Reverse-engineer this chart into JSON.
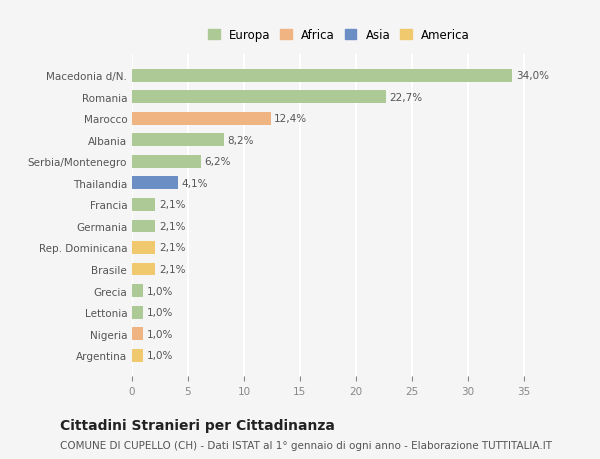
{
  "categories": [
    "Macedonia d/N.",
    "Romania",
    "Marocco",
    "Albania",
    "Serbia/Montenegro",
    "Thailandia",
    "Francia",
    "Germania",
    "Rep. Dominicana",
    "Brasile",
    "Grecia",
    "Lettonia",
    "Nigeria",
    "Argentina"
  ],
  "values": [
    34.0,
    22.7,
    12.4,
    8.2,
    6.2,
    4.1,
    2.1,
    2.1,
    2.1,
    2.1,
    1.0,
    1.0,
    1.0,
    1.0
  ],
  "labels": [
    "34,0%",
    "22,7%",
    "12,4%",
    "8,2%",
    "6,2%",
    "4,1%",
    "2,1%",
    "2,1%",
    "2,1%",
    "2,1%",
    "1,0%",
    "1,0%",
    "1,0%",
    "1,0%"
  ],
  "colors": [
    "#adc996",
    "#adc996",
    "#f0b482",
    "#adc996",
    "#adc996",
    "#6b8ec4",
    "#adc996",
    "#adc996",
    "#f0c96e",
    "#f0c96e",
    "#adc996",
    "#adc996",
    "#f0b482",
    "#f0c96e"
  ],
  "legend_labels": [
    "Europa",
    "Africa",
    "Asia",
    "America"
  ],
  "legend_colors": [
    "#adc996",
    "#f0b482",
    "#6b8ec4",
    "#f0c96e"
  ],
  "title": "Cittadini Stranieri per Cittadinanza",
  "subtitle": "COMUNE DI CUPELLO (CH) - Dati ISTAT al 1° gennaio di ogni anno - Elaborazione TUTTITALIA.IT",
  "xlim": [
    0,
    37
  ],
  "xticks": [
    0,
    5,
    10,
    15,
    20,
    25,
    30,
    35
  ],
  "background_color": "#f5f5f5",
  "grid_color": "#ffffff",
  "bar_height": 0.6,
  "label_fontsize": 7.5,
  "tick_fontsize": 7.5,
  "title_fontsize": 10,
  "subtitle_fontsize": 7.5
}
